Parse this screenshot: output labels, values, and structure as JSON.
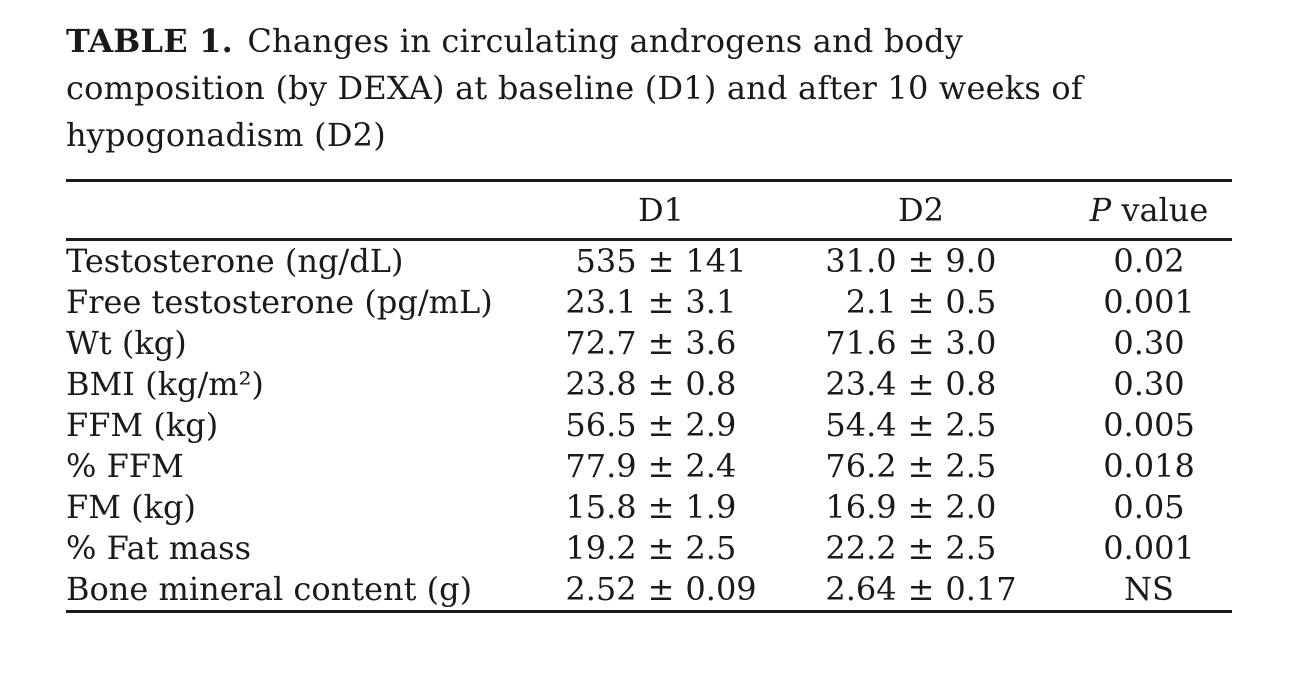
{
  "page": {
    "background": "#ffffff",
    "text_color": "#1a1a1a",
    "rule_color": "#1c1c1c"
  },
  "title": {
    "label": "TABLE 1.",
    "line1_rest": "Changes in circulating androgens and body",
    "line2": "composition (by DEXA) at baseline (D1) and after 10 weeks of",
    "line3": "hypogonadism (D2)"
  },
  "table": {
    "pm": "±",
    "header": {
      "d1": "D1",
      "d2": "D2",
      "p_italic": "P",
      "p_rest": " value"
    },
    "rows": [
      {
        "label": "Testosterone (ng/dL)",
        "d1_mean": "535",
        "d1_sd": "141",
        "d2_mean": "31.0",
        "d2_sd": "9.0",
        "p": "0.02"
      },
      {
        "label": "Free testosterone (pg/mL)",
        "d1_mean": "23.1",
        "d1_sd": "3.1",
        "d2_mean": "2.1",
        "d2_sd": "0.5",
        "p": "0.001"
      },
      {
        "label": "Wt (kg)",
        "d1_mean": "72.7",
        "d1_sd": "3.6",
        "d2_mean": "71.6",
        "d2_sd": "3.0",
        "p": "0.30"
      },
      {
        "label": "BMI (kg/m²)",
        "d1_mean": "23.8",
        "d1_sd": "0.8",
        "d2_mean": "23.4",
        "d2_sd": "0.8",
        "p": "0.30"
      },
      {
        "label": "FFM (kg)",
        "d1_mean": "56.5",
        "d1_sd": "2.9",
        "d2_mean": "54.4",
        "d2_sd": "2.5",
        "p": "0.005"
      },
      {
        "label": "% FFM",
        "d1_mean": "77.9",
        "d1_sd": "2.4",
        "d2_mean": "76.2",
        "d2_sd": "2.5",
        "p": "0.018"
      },
      {
        "label": "FM (kg)",
        "d1_mean": "15.8",
        "d1_sd": "1.9",
        "d2_mean": "16.9",
        "d2_sd": "2.0",
        "p": "0.05"
      },
      {
        "label": "% Fat mass",
        "d1_mean": "19.2",
        "d1_sd": "2.5",
        "d2_mean": "22.2",
        "d2_sd": "2.5",
        "p": "0.001"
      },
      {
        "label": "Bone mineral content (g)",
        "d1_mean": "2.52",
        "d1_sd": "0.09",
        "d2_mean": "2.64",
        "d2_sd": "0.17",
        "p": "NS"
      }
    ]
  }
}
